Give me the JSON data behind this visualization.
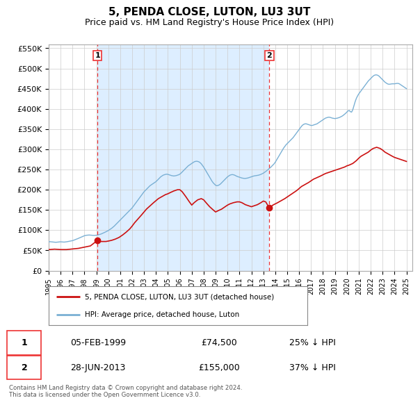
{
  "title": "5, PENDA CLOSE, LUTON, LU3 3UT",
  "subtitle": "Price paid vs. HM Land Registry's House Price Index (HPI)",
  "title_fontsize": 11,
  "subtitle_fontsize": 9,
  "ylim": [
    0,
    560000
  ],
  "yticks": [
    0,
    50000,
    100000,
    150000,
    200000,
    250000,
    300000,
    350000,
    400000,
    450000,
    500000,
    550000
  ],
  "ytick_labels": [
    "£0",
    "£50K",
    "£100K",
    "£150K",
    "£200K",
    "£250K",
    "£300K",
    "£350K",
    "£400K",
    "£450K",
    "£500K",
    "£550K"
  ],
  "xlim_start": 1995.0,
  "xlim_end": 2025.5,
  "background_color": "#ffffff",
  "plot_bg_color": "#ffffff",
  "grid_color": "#cccccc",
  "shade_color": "#ddeeff",
  "marker1_year": 1999.09,
  "marker1_price": 74500,
  "marker1_label": "1",
  "marker1_date": "05-FEB-1999",
  "marker1_pct": "25% ↓ HPI",
  "marker2_year": 2013.5,
  "marker2_price": 155000,
  "marker2_label": "2",
  "marker2_date": "28-JUN-2013",
  "marker2_pct": "37% ↓ HPI",
  "vline_color": "#ee3333",
  "vline_style": "--",
  "legend_line1": "5, PENDA CLOSE, LUTON, LU3 3UT (detached house)",
  "legend_line2": "HPI: Average price, detached house, Luton",
  "footer_text": "Contains HM Land Registry data © Crown copyright and database right 2024.\nThis data is licensed under the Open Government Licence v3.0.",
  "hpi_color": "#7ab0d4",
  "price_color": "#cc1111",
  "hpi_data": [
    [
      1995.0,
      71000
    ],
    [
      1995.1,
      71500
    ],
    [
      1995.2,
      71200
    ],
    [
      1995.3,
      70800
    ],
    [
      1995.4,
      70500
    ],
    [
      1995.5,
      70200
    ],
    [
      1995.6,
      70000
    ],
    [
      1995.7,
      70300
    ],
    [
      1995.8,
      70600
    ],
    [
      1995.9,
      71000
    ],
    [
      1996.0,
      71200
    ],
    [
      1996.1,
      71000
    ],
    [
      1996.2,
      70800
    ],
    [
      1996.3,
      70500
    ],
    [
      1996.4,
      70800
    ],
    [
      1996.5,
      71200
    ],
    [
      1996.6,
      71800
    ],
    [
      1996.7,
      72500
    ],
    [
      1996.8,
      73000
    ],
    [
      1996.9,
      73500
    ],
    [
      1997.0,
      74000
    ],
    [
      1997.1,
      75000
    ],
    [
      1997.2,
      76200
    ],
    [
      1997.3,
      77500
    ],
    [
      1997.4,
      78500
    ],
    [
      1997.5,
      79800
    ],
    [
      1997.6,
      81000
    ],
    [
      1997.7,
      82500
    ],
    [
      1997.8,
      83800
    ],
    [
      1997.9,
      85000
    ],
    [
      1998.0,
      86200
    ],
    [
      1998.1,
      87000
    ],
    [
      1998.2,
      87500
    ],
    [
      1998.3,
      87800
    ],
    [
      1998.4,
      88000
    ],
    [
      1998.5,
      87800
    ],
    [
      1998.6,
      87500
    ],
    [
      1998.7,
      87200
    ],
    [
      1998.8,
      87000
    ],
    [
      1998.9,
      87200
    ],
    [
      1999.0,
      87500
    ],
    [
      1999.1,
      88000
    ],
    [
      1999.2,
      88800
    ],
    [
      1999.3,
      89500
    ],
    [
      1999.4,
      90500
    ],
    [
      1999.5,
      91800
    ],
    [
      1999.6,
      93000
    ],
    [
      1999.7,
      94500
    ],
    [
      1999.8,
      96000
    ],
    [
      1999.9,
      97500
    ],
    [
      2000.0,
      99000
    ],
    [
      2000.1,
      101000
    ],
    [
      2000.2,
      103000
    ],
    [
      2000.3,
      105000
    ],
    [
      2000.4,
      107500
    ],
    [
      2000.5,
      110000
    ],
    [
      2000.6,
      113000
    ],
    [
      2000.7,
      116000
    ],
    [
      2000.8,
      119000
    ],
    [
      2000.9,
      122000
    ],
    [
      2001.0,
      125000
    ],
    [
      2001.1,
      128000
    ],
    [
      2001.2,
      131000
    ],
    [
      2001.3,
      134000
    ],
    [
      2001.4,
      137000
    ],
    [
      2001.5,
      140000
    ],
    [
      2001.6,
      143000
    ],
    [
      2001.7,
      146000
    ],
    [
      2001.8,
      149000
    ],
    [
      2001.9,
      152000
    ],
    [
      2002.0,
      155000
    ],
    [
      2002.1,
      159000
    ],
    [
      2002.2,
      163000
    ],
    [
      2002.3,
      167000
    ],
    [
      2002.4,
      171000
    ],
    [
      2002.5,
      175000
    ],
    [
      2002.6,
      179000
    ],
    [
      2002.7,
      183000
    ],
    [
      2002.8,
      187000
    ],
    [
      2002.9,
      191000
    ],
    [
      2003.0,
      195000
    ],
    [
      2003.1,
      198000
    ],
    [
      2003.2,
      201000
    ],
    [
      2003.3,
      204000
    ],
    [
      2003.4,
      207000
    ],
    [
      2003.5,
      210000
    ],
    [
      2003.6,
      212000
    ],
    [
      2003.7,
      214000
    ],
    [
      2003.8,
      216000
    ],
    [
      2003.9,
      218000
    ],
    [
      2004.0,
      220000
    ],
    [
      2004.1,
      223000
    ],
    [
      2004.2,
      226000
    ],
    [
      2004.3,
      229000
    ],
    [
      2004.4,
      232000
    ],
    [
      2004.5,
      234000
    ],
    [
      2004.6,
      236000
    ],
    [
      2004.7,
      237000
    ],
    [
      2004.8,
      238000
    ],
    [
      2004.9,
      238500
    ],
    [
      2005.0,
      238000
    ],
    [
      2005.1,
      237000
    ],
    [
      2005.2,
      236000
    ],
    [
      2005.3,
      235000
    ],
    [
      2005.4,
      234500
    ],
    [
      2005.5,
      234000
    ],
    [
      2005.6,
      234500
    ],
    [
      2005.7,
      235000
    ],
    [
      2005.8,
      236000
    ],
    [
      2005.9,
      237000
    ],
    [
      2006.0,
      238500
    ],
    [
      2006.1,
      241000
    ],
    [
      2006.2,
      244000
    ],
    [
      2006.3,
      247000
    ],
    [
      2006.4,
      250000
    ],
    [
      2006.5,
      253000
    ],
    [
      2006.6,
      256000
    ],
    [
      2006.7,
      259000
    ],
    [
      2006.8,
      261000
    ],
    [
      2006.9,
      263000
    ],
    [
      2007.0,
      265000
    ],
    [
      2007.1,
      267000
    ],
    [
      2007.2,
      269000
    ],
    [
      2007.3,
      270000
    ],
    [
      2007.4,
      270500
    ],
    [
      2007.5,
      270000
    ],
    [
      2007.6,
      269000
    ],
    [
      2007.7,
      267000
    ],
    [
      2007.8,
      264000
    ],
    [
      2007.9,
      260000
    ],
    [
      2008.0,
      256000
    ],
    [
      2008.1,
      251000
    ],
    [
      2008.2,
      246000
    ],
    [
      2008.3,
      241000
    ],
    [
      2008.4,
      236000
    ],
    [
      2008.5,
      231000
    ],
    [
      2008.6,
      226000
    ],
    [
      2008.7,
      221000
    ],
    [
      2008.8,
      217000
    ],
    [
      2008.9,
      214000
    ],
    [
      2009.0,
      211000
    ],
    [
      2009.1,
      210000
    ],
    [
      2009.2,
      210500
    ],
    [
      2009.3,
      212000
    ],
    [
      2009.4,
      214000
    ],
    [
      2009.5,
      217000
    ],
    [
      2009.6,
      220000
    ],
    [
      2009.7,
      223000
    ],
    [
      2009.8,
      226000
    ],
    [
      2009.9,
      229000
    ],
    [
      2010.0,
      232000
    ],
    [
      2010.1,
      234000
    ],
    [
      2010.2,
      236000
    ],
    [
      2010.3,
      237000
    ],
    [
      2010.4,
      237500
    ],
    [
      2010.5,
      237000
    ],
    [
      2010.6,
      236000
    ],
    [
      2010.7,
      234500
    ],
    [
      2010.8,
      233000
    ],
    [
      2010.9,
      232000
    ],
    [
      2011.0,
      231000
    ],
    [
      2011.1,
      230000
    ],
    [
      2011.2,
      229000
    ],
    [
      2011.3,
      228500
    ],
    [
      2011.4,
      228000
    ],
    [
      2011.5,
      228000
    ],
    [
      2011.6,
      228500
    ],
    [
      2011.7,
      229000
    ],
    [
      2011.8,
      230000
    ],
    [
      2011.9,
      231000
    ],
    [
      2012.0,
      232000
    ],
    [
      2012.1,
      233000
    ],
    [
      2012.2,
      234000
    ],
    [
      2012.3,
      234500
    ],
    [
      2012.4,
      235000
    ],
    [
      2012.5,
      235500
    ],
    [
      2012.6,
      236000
    ],
    [
      2012.7,
      237000
    ],
    [
      2012.8,
      238000
    ],
    [
      2012.9,
      239500
    ],
    [
      2013.0,
      241000
    ],
    [
      2013.1,
      243000
    ],
    [
      2013.2,
      245000
    ],
    [
      2013.3,
      247500
    ],
    [
      2013.4,
      250000
    ],
    [
      2013.5,
      252500
    ],
    [
      2013.6,
      255000
    ],
    [
      2013.7,
      258000
    ],
    [
      2013.8,
      261000
    ],
    [
      2013.9,
      264000
    ],
    [
      2014.0,
      268000
    ],
    [
      2014.1,
      273000
    ],
    [
      2014.2,
      278000
    ],
    [
      2014.3,
      283000
    ],
    [
      2014.4,
      288000
    ],
    [
      2014.5,
      293000
    ],
    [
      2014.6,
      298000
    ],
    [
      2014.7,
      303000
    ],
    [
      2014.8,
      307000
    ],
    [
      2014.9,
      311000
    ],
    [
      2015.0,
      314000
    ],
    [
      2015.1,
      317000
    ],
    [
      2015.2,
      320000
    ],
    [
      2015.3,
      323000
    ],
    [
      2015.4,
      326000
    ],
    [
      2015.5,
      329000
    ],
    [
      2015.6,
      333000
    ],
    [
      2015.7,
      337000
    ],
    [
      2015.8,
      341000
    ],
    [
      2015.9,
      345000
    ],
    [
      2016.0,
      349000
    ],
    [
      2016.1,
      353000
    ],
    [
      2016.2,
      357000
    ],
    [
      2016.3,
      360000
    ],
    [
      2016.4,
      362000
    ],
    [
      2016.5,
      363000
    ],
    [
      2016.6,
      363000
    ],
    [
      2016.7,
      362000
    ],
    [
      2016.8,
      361000
    ],
    [
      2016.9,
      360000
    ],
    [
      2017.0,
      359000
    ],
    [
      2017.1,
      359000
    ],
    [
      2017.2,
      360000
    ],
    [
      2017.3,
      361000
    ],
    [
      2017.4,
      362000
    ],
    [
      2017.5,
      363000
    ],
    [
      2017.6,
      365000
    ],
    [
      2017.7,
      367000
    ],
    [
      2017.8,
      369000
    ],
    [
      2017.9,
      371000
    ],
    [
      2018.0,
      373000
    ],
    [
      2018.1,
      375000
    ],
    [
      2018.2,
      377000
    ],
    [
      2018.3,
      378000
    ],
    [
      2018.4,
      379000
    ],
    [
      2018.5,
      379500
    ],
    [
      2018.6,
      379000
    ],
    [
      2018.7,
      378000
    ],
    [
      2018.8,
      377000
    ],
    [
      2018.9,
      376500
    ],
    [
      2019.0,
      376000
    ],
    [
      2019.1,
      376500
    ],
    [
      2019.2,
      377000
    ],
    [
      2019.3,
      378000
    ],
    [
      2019.4,
      379000
    ],
    [
      2019.5,
      380500
    ],
    [
      2019.6,
      382000
    ],
    [
      2019.7,
      384000
    ],
    [
      2019.8,
      386500
    ],
    [
      2019.9,
      389000
    ],
    [
      2020.0,
      392000
    ],
    [
      2020.1,
      395000
    ],
    [
      2020.2,
      396000
    ],
    [
      2020.3,
      393000
    ],
    [
      2020.4,
      392000
    ],
    [
      2020.5,
      398000
    ],
    [
      2020.6,
      408000
    ],
    [
      2020.7,
      418000
    ],
    [
      2020.8,
      426000
    ],
    [
      2020.9,
      432000
    ],
    [
      2021.0,
      437000
    ],
    [
      2021.1,
      441000
    ],
    [
      2021.2,
      445000
    ],
    [
      2021.3,
      449000
    ],
    [
      2021.4,
      453000
    ],
    [
      2021.5,
      457000
    ],
    [
      2021.6,
      461000
    ],
    [
      2021.7,
      465000
    ],
    [
      2021.8,
      469000
    ],
    [
      2021.9,
      472000
    ],
    [
      2022.0,
      475000
    ],
    [
      2022.1,
      478000
    ],
    [
      2022.2,
      481000
    ],
    [
      2022.3,
      483000
    ],
    [
      2022.4,
      484000
    ],
    [
      2022.5,
      484000
    ],
    [
      2022.6,
      483000
    ],
    [
      2022.7,
      481000
    ],
    [
      2022.8,
      478000
    ],
    [
      2022.9,
      475000
    ],
    [
      2023.0,
      472000
    ],
    [
      2023.1,
      469000
    ],
    [
      2023.2,
      466000
    ],
    [
      2023.3,
      464000
    ],
    [
      2023.4,
      462000
    ],
    [
      2023.5,
      461000
    ],
    [
      2023.6,
      461000
    ],
    [
      2023.7,
      461500
    ],
    [
      2023.8,
      462000
    ],
    [
      2023.9,
      462000
    ],
    [
      2024.0,
      462000
    ],
    [
      2024.1,
      462500
    ],
    [
      2024.2,
      463000
    ],
    [
      2024.3,
      463000
    ],
    [
      2024.4,
      462000
    ],
    [
      2024.5,
      460000
    ],
    [
      2024.6,
      458000
    ],
    [
      2024.7,
      456000
    ],
    [
      2024.8,
      454000
    ],
    [
      2024.9,
      452000
    ],
    [
      2025.0,
      450000
    ]
  ],
  "price_data": [
    [
      1995.0,
      52000
    ],
    [
      1995.08,
      52000
    ],
    [
      1995.5,
      53000
    ],
    [
      1996.0,
      52000
    ],
    [
      1996.5,
      52000
    ],
    [
      1997.0,
      53500
    ],
    [
      1997.5,
      55000
    ],
    [
      1998.0,
      58000
    ],
    [
      1998.5,
      61000
    ],
    [
      1999.09,
      74500
    ],
    [
      1999.2,
      72000
    ],
    [
      1999.5,
      72000
    ],
    [
      1999.8,
      72000
    ],
    [
      2000.0,
      73000
    ],
    [
      2000.3,
      75000
    ],
    [
      2000.6,
      78000
    ],
    [
      2000.9,
      82000
    ],
    [
      2001.0,
      84000
    ],
    [
      2001.2,
      88000
    ],
    [
      2001.5,
      95000
    ],
    [
      2001.8,
      103000
    ],
    [
      2002.0,
      110000
    ],
    [
      2002.2,
      118000
    ],
    [
      2002.5,
      128000
    ],
    [
      2002.8,
      138000
    ],
    [
      2003.0,
      145000
    ],
    [
      2003.2,
      152000
    ],
    [
      2003.5,
      160000
    ],
    [
      2003.8,
      168000
    ],
    [
      2004.0,
      173000
    ],
    [
      2004.2,
      178000
    ],
    [
      2004.5,
      183000
    ],
    [
      2004.8,
      188000
    ],
    [
      2005.0,
      190000
    ],
    [
      2005.2,
      193000
    ],
    [
      2005.5,
      197000
    ],
    [
      2005.8,
      200000
    ],
    [
      2006.0,
      200000
    ],
    [
      2006.2,
      195000
    ],
    [
      2006.5,
      183000
    ],
    [
      2006.8,
      170000
    ],
    [
      2007.0,
      162000
    ],
    [
      2007.2,
      168000
    ],
    [
      2007.5,
      175000
    ],
    [
      2007.8,
      178000
    ],
    [
      2008.0,
      175000
    ],
    [
      2008.2,
      168000
    ],
    [
      2008.5,
      158000
    ],
    [
      2008.8,
      150000
    ],
    [
      2009.0,
      145000
    ],
    [
      2009.2,
      148000
    ],
    [
      2009.5,
      152000
    ],
    [
      2009.8,
      158000
    ],
    [
      2010.0,
      162000
    ],
    [
      2010.2,
      165000
    ],
    [
      2010.5,
      168000
    ],
    [
      2010.8,
      170000
    ],
    [
      2011.0,
      170000
    ],
    [
      2011.2,
      168000
    ],
    [
      2011.5,
      163000
    ],
    [
      2011.8,
      160000
    ],
    [
      2012.0,
      158000
    ],
    [
      2012.2,
      160000
    ],
    [
      2012.5,
      163000
    ],
    [
      2012.8,
      168000
    ],
    [
      2013.0,
      172000
    ],
    [
      2013.2,
      170000
    ],
    [
      2013.5,
      155000
    ],
    [
      2013.8,
      162000
    ],
    [
      2014.0,
      165000
    ],
    [
      2014.2,
      168000
    ],
    [
      2014.5,
      173000
    ],
    [
      2014.8,
      178000
    ],
    [
      2015.0,
      182000
    ],
    [
      2015.2,
      186000
    ],
    [
      2015.5,
      192000
    ],
    [
      2015.8,
      198000
    ],
    [
      2016.0,
      203000
    ],
    [
      2016.2,
      208000
    ],
    [
      2016.5,
      213000
    ],
    [
      2016.8,
      218000
    ],
    [
      2017.0,
      222000
    ],
    [
      2017.2,
      226000
    ],
    [
      2017.5,
      230000
    ],
    [
      2017.8,
      234000
    ],
    [
      2018.0,
      237000
    ],
    [
      2018.2,
      240000
    ],
    [
      2018.5,
      243000
    ],
    [
      2018.8,
      246000
    ],
    [
      2019.0,
      248000
    ],
    [
      2019.2,
      250000
    ],
    [
      2019.5,
      253000
    ],
    [
      2019.8,
      256000
    ],
    [
      2020.0,
      259000
    ],
    [
      2020.2,
      261000
    ],
    [
      2020.5,
      265000
    ],
    [
      2020.8,
      272000
    ],
    [
      2021.0,
      278000
    ],
    [
      2021.2,
      283000
    ],
    [
      2021.5,
      288000
    ],
    [
      2021.8,
      293000
    ],
    [
      2022.0,
      298000
    ],
    [
      2022.2,
      302000
    ],
    [
      2022.5,
      305000
    ],
    [
      2022.8,
      302000
    ],
    [
      2023.0,
      298000
    ],
    [
      2023.2,
      293000
    ],
    [
      2023.5,
      288000
    ],
    [
      2023.8,
      283000
    ],
    [
      2024.0,
      280000
    ],
    [
      2024.2,
      278000
    ],
    [
      2024.5,
      275000
    ],
    [
      2024.8,
      272000
    ],
    [
      2025.0,
      270000
    ]
  ],
  "xtick_years": [
    1995,
    1996,
    1997,
    1998,
    1999,
    2000,
    2001,
    2002,
    2003,
    2004,
    2005,
    2006,
    2007,
    2008,
    2009,
    2010,
    2011,
    2012,
    2013,
    2014,
    2015,
    2016,
    2017,
    2018,
    2019,
    2020,
    2021,
    2022,
    2023,
    2024,
    2025
  ]
}
